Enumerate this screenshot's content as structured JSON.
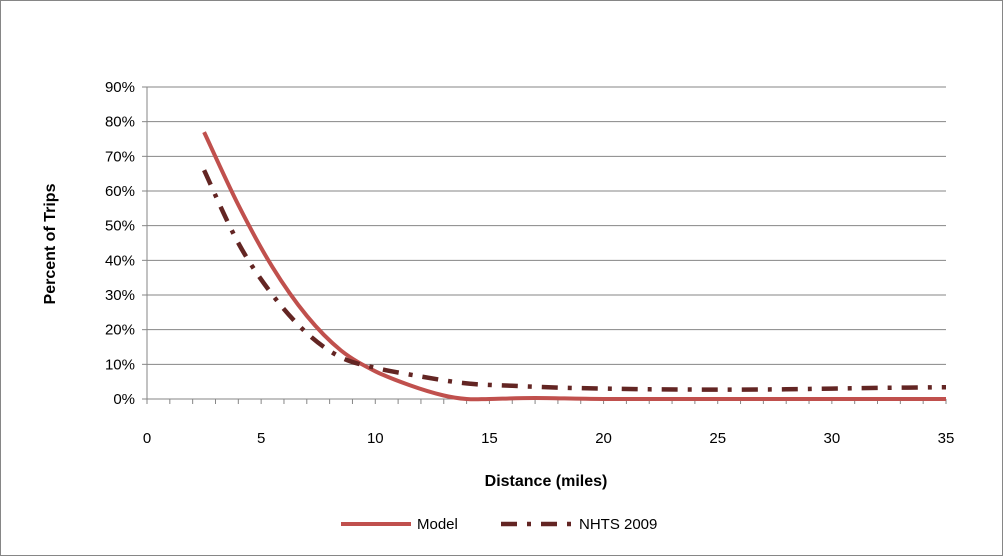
{
  "chart_data": {
    "type": "line",
    "xlabel": "Distance (miles)",
    "ylabel": "Percent of Trips",
    "xlim": [
      0,
      35
    ],
    "ylim": [
      0,
      90
    ],
    "x_ticks": [
      0,
      5,
      10,
      15,
      20,
      25,
      30,
      35
    ],
    "x_tick_labels": [
      "0",
      "5",
      "10",
      "15",
      "20",
      "25",
      "30",
      "35"
    ],
    "y_ticks": [
      0,
      10,
      20,
      30,
      40,
      50,
      60,
      70,
      80,
      90
    ],
    "y_tick_labels": [
      "0%",
      "10%",
      "20%",
      "30%",
      "40%",
      "50%",
      "60%",
      "70%",
      "80%",
      "90%"
    ],
    "grid": "horizontal",
    "legend_position": "bottom",
    "series": [
      {
        "name": "Model",
        "color": "#c0504d",
        "style": "solid",
        "x": [
          2.5,
          4,
          5.5,
          7,
          8.5,
          10,
          11.5,
          13,
          14,
          15,
          17,
          20,
          25,
          30,
          35
        ],
        "y": [
          77,
          56,
          38,
          24,
          14,
          8,
          4,
          1,
          0,
          0,
          0.3,
          0,
          0,
          0,
          0
        ]
      },
      {
        "name": "NHTS 2009",
        "color": "#632523",
        "style": "dash-dot",
        "x": [
          2.5,
          4,
          5.5,
          7,
          8.5,
          10,
          12,
          14,
          16,
          18,
          20,
          22,
          25,
          28,
          30,
          32,
          35
        ],
        "y": [
          66,
          45,
          30,
          19,
          12,
          9,
          6.5,
          4.5,
          3.8,
          3.3,
          3,
          2.8,
          2.7,
          2.8,
          3,
          3.2,
          3.4
        ]
      }
    ]
  }
}
